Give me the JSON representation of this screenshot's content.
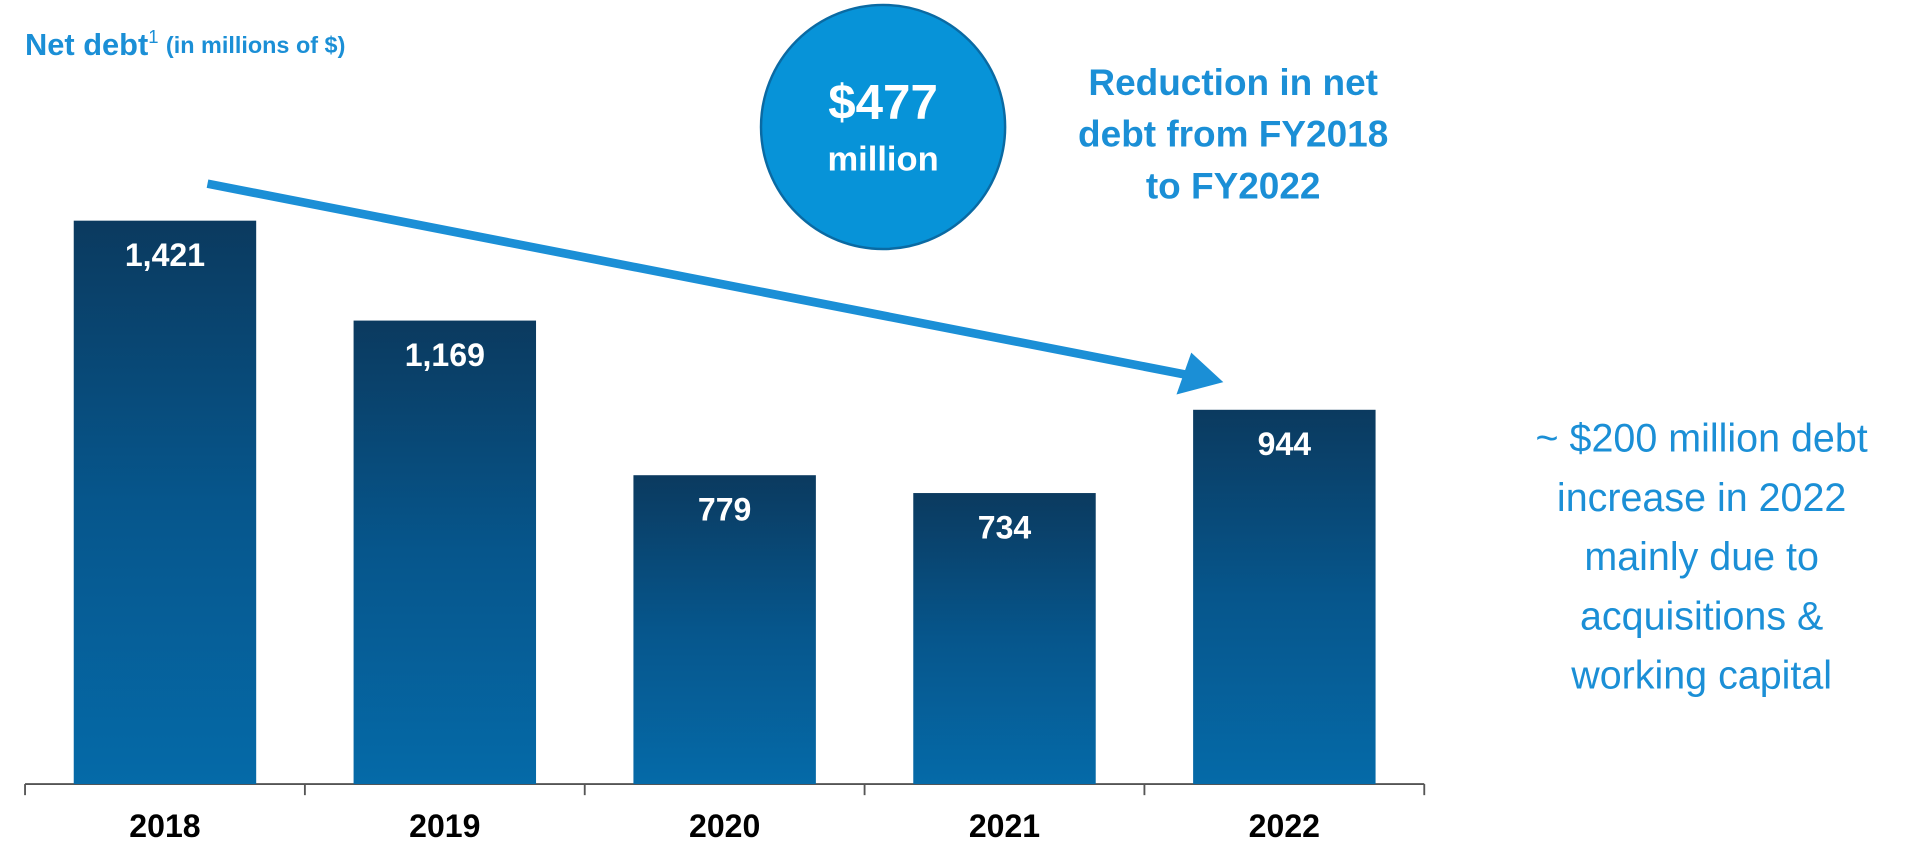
{
  "chart_data": {
    "type": "bar",
    "title": "Net debt",
    "title_superscript": "1",
    "subtitle": "(in millions of $)",
    "categories": [
      "2018",
      "2019",
      "2020",
      "2021",
      "2022"
    ],
    "values": [
      1421,
      1169,
      779,
      734,
      944
    ],
    "value_labels": [
      "1,421",
      "1,169",
      "779",
      "734",
      "944"
    ],
    "color": "#0569a6",
    "callout": {
      "value": "$477",
      "unit": "million"
    },
    "annotation": [
      "Reduction in net",
      "debt from FY2018",
      "to FY2022"
    ],
    "note": [
      "~ $200 million debt",
      "increase in 2022",
      "mainly due to",
      "acquisitions &",
      "working capital"
    ]
  }
}
